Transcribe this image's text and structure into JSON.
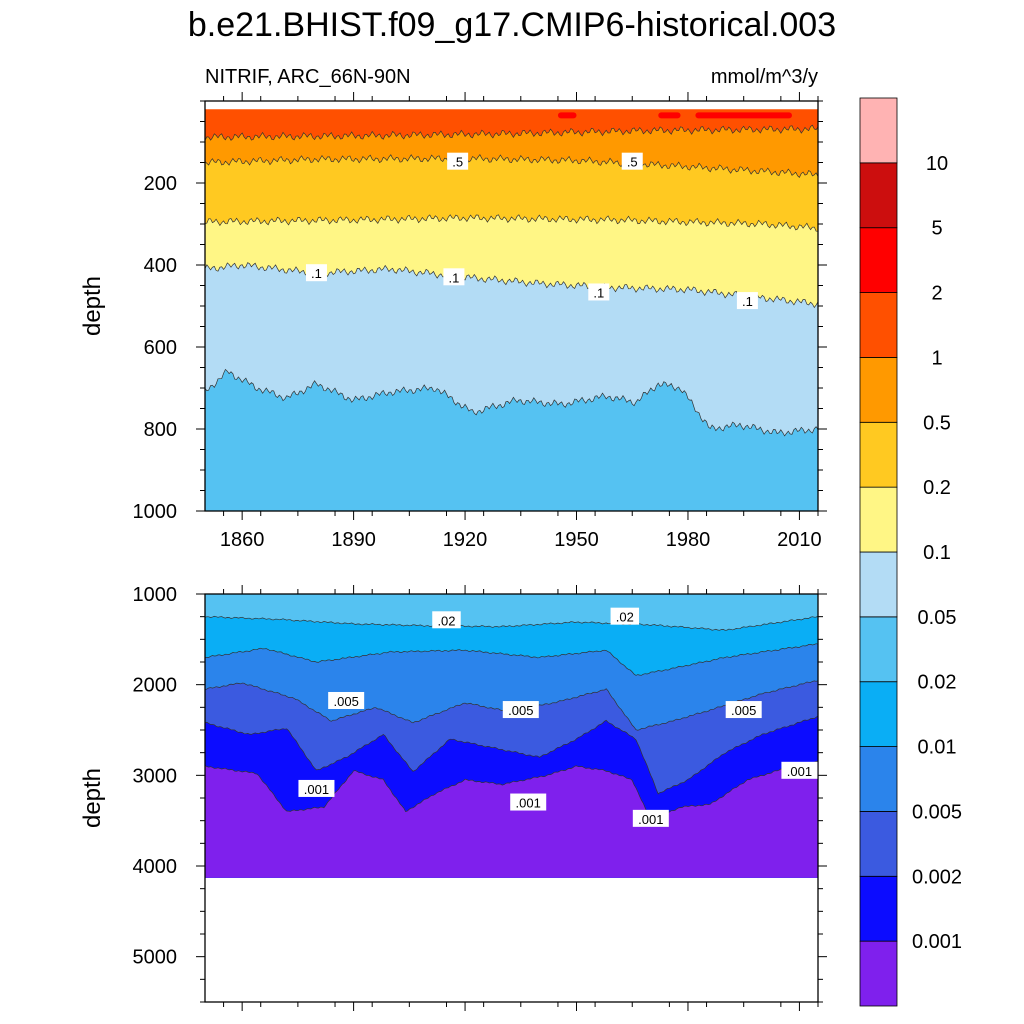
{
  "title": "b.e21.BHIST.f09_g17.CMIP6-historical.003",
  "left_string": "NITRIF, ARC_66N-90N",
  "right_string": "mmol/m^3/y",
  "chart_data": [
    {
      "type": "contour",
      "panel": "upper",
      "ylabel": "depth",
      "xlim": [
        1850,
        2015
      ],
      "ylim": [
        0,
        1000
      ],
      "y_reversed": true,
      "xticks": [
        1860,
        1890,
        1920,
        1950,
        1980,
        2010
      ],
      "xtick_labels": [
        "1860",
        "1890",
        "1920",
        "1950",
        "1980",
        "2010"
      ],
      "yticks": [
        200,
        400,
        600,
        800,
        1000
      ],
      "ytick_labels": [
        "200",
        "400",
        "600",
        "800",
        "1000"
      ],
      "data_top": 20,
      "boundaries": [
        {
          "level": 2,
          "fill_below": "#ff5000",
          "x": [
            1850,
            2015
          ],
          "y": [
            10,
            10
          ]
        },
        {
          "level": 1,
          "fill_below": "#ff9900",
          "x": [
            1850,
            1890,
            1930,
            1970,
            2015
          ],
          "y": [
            88,
            85,
            80,
            72,
            68
          ]
        },
        {
          "level": 0.5,
          "fill_below": "#ffc921",
          "x": [
            1850,
            1880,
            1920,
            1950,
            1980,
            2015
          ],
          "y": [
            150,
            142,
            140,
            145,
            160,
            180
          ]
        },
        {
          "level": 0.2,
          "fill_below": "#fff685",
          "x": [
            1850,
            1890,
            1920,
            1960,
            2000,
            2015
          ],
          "y": [
            295,
            290,
            285,
            290,
            300,
            310
          ]
        },
        {
          "level": 0.1,
          "fill_below": "#b3dcf5",
          "x": [
            1850,
            1860,
            1880,
            1900,
            1920,
            1940,
            1960,
            1980,
            2000,
            2015
          ],
          "y": [
            410,
            400,
            420,
            410,
            430,
            445,
            455,
            460,
            480,
            495
          ]
        },
        {
          "level": 0.05,
          "fill_below": "#55c2f2",
          "x": [
            1850,
            1856,
            1864,
            1872,
            1880,
            1890,
            1900,
            1912,
            1922,
            1934,
            1946,
            1958,
            1966,
            1972,
            1978,
            1986,
            1994,
            2004,
            2015
          ],
          "y": [
            710,
            660,
            700,
            725,
            690,
            730,
            710,
            700,
            760,
            730,
            740,
            720,
            735,
            690,
            700,
            800,
            790,
            810,
            800
          ]
        }
      ],
      "contour_labels": [
        {
          "text": ".5",
          "x": 1918,
          "y": 148
        },
        {
          "text": ".5",
          "x": 1965,
          "y": 148
        },
        {
          "text": ".1",
          "x": 1880,
          "y": 420
        },
        {
          "text": ".1",
          "x": 1917,
          "y": 430
        },
        {
          "text": ".1",
          "x": 1956,
          "y": 467
        },
        {
          "text": ".1",
          "x": 1996,
          "y": 488
        }
      ],
      "top_band": {
        "x": [
          1945,
          1950,
          1972,
          1978,
          1982,
          2008,
          2015
        ],
        "y": [
          40,
          35,
          40,
          35,
          38,
          35,
          42
        ]
      }
    },
    {
      "type": "contour",
      "panel": "lower",
      "ylabel": "depth",
      "xlim": [
        1850,
        2015
      ],
      "ylim": [
        1000,
        5500
      ],
      "y_reversed": true,
      "xticks": [
        1860,
        1890,
        1920,
        1950,
        1980,
        2010
      ],
      "yticks": [
        1000,
        2000,
        3000,
        4000,
        5000
      ],
      "ytick_labels": [
        "1000",
        "2000",
        "3000",
        "4000",
        "5000"
      ],
      "data_bottom": 4130,
      "boundaries": [
        {
          "level": 0.05,
          "fill_below": "#55c2f2",
          "x": [
            1850,
            2015
          ],
          "y": [
            1000,
            1000
          ]
        },
        {
          "level": 0.02,
          "fill_below": "#0aaef5",
          "x": [
            1850,
            1870,
            1890,
            1910,
            1930,
            1950,
            1970,
            1990,
            2015
          ],
          "y": [
            1250,
            1280,
            1330,
            1350,
            1360,
            1310,
            1340,
            1400,
            1250
          ]
        },
        {
          "level": 0.01,
          "fill_below": "#2b84eb",
          "x": [
            1850,
            1866,
            1880,
            1900,
            1920,
            1940,
            1958,
            1966,
            1976,
            1990,
            2015
          ],
          "y": [
            1700,
            1600,
            1750,
            1640,
            1620,
            1700,
            1620,
            1900,
            1820,
            1700,
            1550
          ]
        },
        {
          "level": 0.005,
          "fill_below": "#3b5ae0",
          "x": [
            1850,
            1860,
            1874,
            1884,
            1896,
            1906,
            1920,
            1932,
            1946,
            1958,
            1966,
            1976,
            1986,
            2000,
            2015
          ],
          "y": [
            2050,
            1980,
            2150,
            2400,
            2250,
            2420,
            2200,
            2300,
            2180,
            2050,
            2500,
            2400,
            2280,
            2100,
            1950
          ]
        },
        {
          "level": 0.002,
          "fill_below": "#0c0cff",
          "x": [
            1850,
            1862,
            1872,
            1880,
            1888,
            1898,
            1906,
            1916,
            1928,
            1940,
            1950,
            1958,
            1966,
            1972,
            1980,
            1990,
            2000,
            2015
          ],
          "y": [
            2420,
            2550,
            2480,
            2950,
            2800,
            2550,
            2960,
            2600,
            2700,
            2800,
            2600,
            2400,
            2600,
            3200,
            3050,
            2750,
            2550,
            2350
          ]
        },
        {
          "level": 0.001,
          "fill_below": "#7f20ed",
          "x": [
            1850,
            1864,
            1872,
            1882,
            1890,
            1898,
            1904,
            1912,
            1920,
            1930,
            1942,
            1950,
            1958,
            1965,
            1970,
            1978,
            1986,
            1996,
            2008,
            2015
          ],
          "y": [
            2900,
            2980,
            3400,
            3350,
            2950,
            3050,
            3400,
            3200,
            3050,
            3100,
            3000,
            2900,
            2950,
            3050,
            3500,
            3350,
            3320,
            3050,
            2900,
            2850
          ]
        }
      ],
      "contour_labels": [
        {
          "text": ".02",
          "x": 1915,
          "y": 1290
        },
        {
          "text": ".02",
          "x": 1963,
          "y": 1250
        },
        {
          "text": ".005",
          "x": 1888,
          "y": 2180
        },
        {
          "text": ".005",
          "x": 1935,
          "y": 2280
        },
        {
          "text": ".005",
          "x": 1995,
          "y": 2280
        },
        {
          "text": ".001",
          "x": 1880,
          "y": 3150
        },
        {
          "text": ".001",
          "x": 1937,
          "y": 3300
        },
        {
          "text": ".001",
          "x": 1970,
          "y": 3480
        },
        {
          "text": ".001",
          "x": 2010,
          "y": 2950
        }
      ]
    }
  ],
  "colorbar": {
    "colors_bottom_to_top": [
      "#7f20ed",
      "#0c0cff",
      "#3b5ae0",
      "#2b84eb",
      "#0aaef5",
      "#55c2f2",
      "#b3dcf5",
      "#fff685",
      "#ffc921",
      "#ff9900",
      "#ff5000",
      "#ff0000",
      "#cc0e0e",
      "#ffb3b3"
    ],
    "labels_bottom_to_top": [
      "0.001",
      "0.002",
      "0.005",
      "0.01",
      "0.02",
      "0.05",
      "0.1",
      "0.2",
      "0.5",
      "1",
      "2",
      "5",
      "10"
    ]
  }
}
